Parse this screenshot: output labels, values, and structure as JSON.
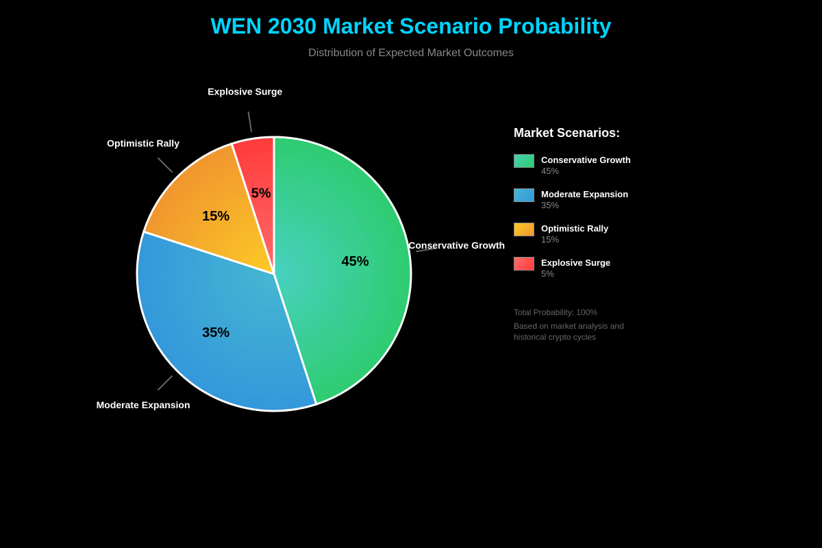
{
  "header": {
    "title": "WEN 2030 Market Scenario Probability",
    "subtitle": "Distribution of Expected Market Outcomes"
  },
  "legend": {
    "title": "Market Scenarios:",
    "items": [
      {
        "name": "Conservative Growth",
        "value": "45%",
        "color": "#2ecc71"
      },
      {
        "name": "Moderate Expansion",
        "value": "35%",
        "color": "#3498db"
      },
      {
        "name": "Optimistic Rally",
        "value": "15%",
        "color": "#f39c12"
      },
      {
        "name": "Explosive Surge",
        "value": "5%",
        "color": "#ff4444"
      }
    ]
  },
  "notes": {
    "total": "Total Probability: 100%",
    "basis_line1": "Based on market analysis and",
    "basis_line2": "historical crypto cycles"
  },
  "chart_data": {
    "type": "pie",
    "title": "WEN 2030 Market Scenario Probability",
    "subtitle": "Distribution of Expected Market Outcomes",
    "categories": [
      "Conservative Growth",
      "Moderate Expansion",
      "Optimistic Rally",
      "Explosive Surge"
    ],
    "values": [
      45,
      35,
      15,
      5
    ],
    "labels": [
      "45%",
      "35%",
      "15%",
      "5%"
    ],
    "colors": [
      "#2ecc71",
      "#3498db",
      "#f39c12",
      "#ff4444"
    ],
    "start_angle": "12 o'clock, clockwise",
    "legend_position": "right",
    "legend_title": "Market Scenarios:"
  }
}
